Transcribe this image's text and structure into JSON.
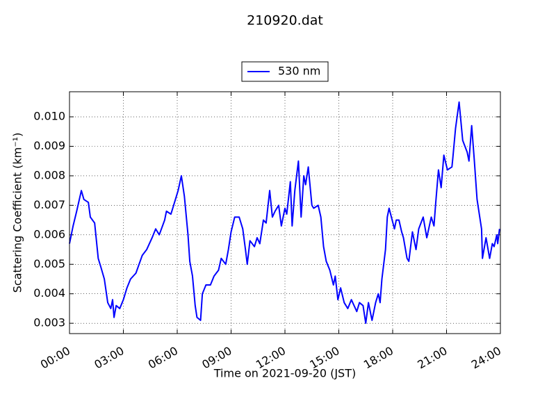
{
  "chart_data": {
    "type": "line",
    "title": "210920.dat",
    "x_label": "Time on 2021-09-20 (JST)",
    "y_label": "Scattering Coefficient (km⁻¹)",
    "legend": "upper center",
    "grid": true,
    "xlim": [
      0,
      24
    ],
    "xticks": [
      {
        "value": 0,
        "label": "00:00"
      },
      {
        "value": 3,
        "label": "03:00"
      },
      {
        "value": 6,
        "label": "06:00"
      },
      {
        "value": 9,
        "label": "09:00"
      },
      {
        "value": 12,
        "label": "12:00"
      },
      {
        "value": 15,
        "label": "15:00"
      },
      {
        "value": 18,
        "label": "18:00"
      },
      {
        "value": 21,
        "label": "21:00"
      },
      {
        "value": 24,
        "label": "24:00"
      }
    ],
    "ylim": [
      0.00265,
      0.01085
    ],
    "yticks": [
      0.003,
      0.004,
      0.005,
      0.006,
      0.007,
      0.008,
      0.009,
      {
        "value": 0.01,
        "label": "0.010"
      }
    ],
    "x": [
      0.0,
      0.2,
      0.4,
      0.66,
      0.8,
      1.05,
      1.16,
      1.4,
      1.6,
      1.75,
      1.94,
      2.13,
      2.3,
      2.4,
      2.48,
      2.6,
      2.8,
      3.0,
      3.2,
      3.4,
      3.7,
      4.05,
      4.3,
      4.6,
      4.8,
      5.0,
      5.3,
      5.4,
      5.65,
      5.9,
      6.05,
      6.23,
      6.4,
      6.6,
      6.7,
      6.85,
      7.0,
      7.1,
      7.3,
      7.4,
      7.6,
      7.85,
      8.05,
      8.3,
      8.45,
      8.7,
      8.85,
      9.0,
      9.2,
      9.45,
      9.65,
      9.8,
      9.9,
      10.05,
      10.3,
      10.45,
      10.6,
      10.8,
      10.95,
      11.15,
      11.3,
      11.45,
      11.65,
      11.8,
      12.0,
      12.1,
      12.3,
      12.4,
      12.55,
      12.75,
      12.9,
      13.05,
      13.15,
      13.3,
      13.5,
      13.6,
      13.85,
      14.0,
      14.15,
      14.3,
      14.5,
      14.7,
      14.8,
      14.95,
      15.1,
      15.3,
      15.5,
      15.7,
      16.0,
      16.15,
      16.35,
      16.5,
      16.65,
      16.85,
      17.05,
      17.2,
      17.3,
      17.4,
      17.6,
      17.7,
      17.8,
      18.1,
      18.2,
      18.35,
      18.5,
      18.6,
      18.8,
      18.9,
      19.1,
      19.3,
      19.45,
      19.7,
      19.9,
      20.15,
      20.3,
      20.4,
      20.55,
      20.7,
      20.85,
      21.05,
      21.3,
      21.35,
      21.5,
      21.7,
      21.9,
      22.15,
      22.25,
      22.4,
      22.55,
      22.7,
      22.85,
      22.95,
      23.0,
      23.2,
      23.4,
      23.55,
      23.65,
      23.8,
      23.85,
      23.95
    ],
    "series": [
      {
        "name": "530 nm",
        "color": "#0000ff",
        "values": [
          0.0057,
          0.0063,
          0.0068,
          0.0075,
          0.0072,
          0.0071,
          0.0066,
          0.0064,
          0.0052,
          0.0049,
          0.0045,
          0.0037,
          0.0035,
          0.0038,
          0.0032,
          0.0036,
          0.0035,
          0.0038,
          0.0042,
          0.0045,
          0.0047,
          0.0053,
          0.0055,
          0.0059,
          0.0062,
          0.006,
          0.0065,
          0.0068,
          0.0067,
          0.0072,
          0.0075,
          0.008,
          0.0073,
          0.006,
          0.0051,
          0.0046,
          0.0036,
          0.0032,
          0.0031,
          0.004,
          0.0043,
          0.0043,
          0.0046,
          0.0048,
          0.0052,
          0.005,
          0.0055,
          0.0061,
          0.0066,
          0.0066,
          0.0062,
          0.0055,
          0.005,
          0.0058,
          0.0056,
          0.0059,
          0.0057,
          0.0065,
          0.0064,
          0.0075,
          0.0066,
          0.0068,
          0.007,
          0.0063,
          0.0069,
          0.0067,
          0.0078,
          0.0063,
          0.0075,
          0.0085,
          0.0066,
          0.008,
          0.0077,
          0.0083,
          0.007,
          0.0069,
          0.007,
          0.0066,
          0.0056,
          0.0051,
          0.0048,
          0.0043,
          0.0046,
          0.0038,
          0.0042,
          0.0037,
          0.0035,
          0.0038,
          0.0034,
          0.0037,
          0.0036,
          0.003,
          0.0037,
          0.0031,
          0.0037,
          0.004,
          0.0037,
          0.0045,
          0.0055,
          0.0066,
          0.0069,
          0.0062,
          0.0065,
          0.0065,
          0.0061,
          0.0059,
          0.0052,
          0.0051,
          0.0061,
          0.0055,
          0.0062,
          0.0066,
          0.0059,
          0.0066,
          0.0063,
          0.0071,
          0.0082,
          0.0076,
          0.0087,
          0.0082,
          0.0083,
          0.0086,
          0.0096,
          0.0105,
          0.0092,
          0.0088,
          0.0085,
          0.0097,
          0.0085,
          0.0072,
          0.0066,
          0.0062,
          0.0052,
          0.0059,
          0.0052,
          0.0057,
          0.0056,
          0.006,
          0.0057,
          0.0062
        ]
      }
    ]
  }
}
